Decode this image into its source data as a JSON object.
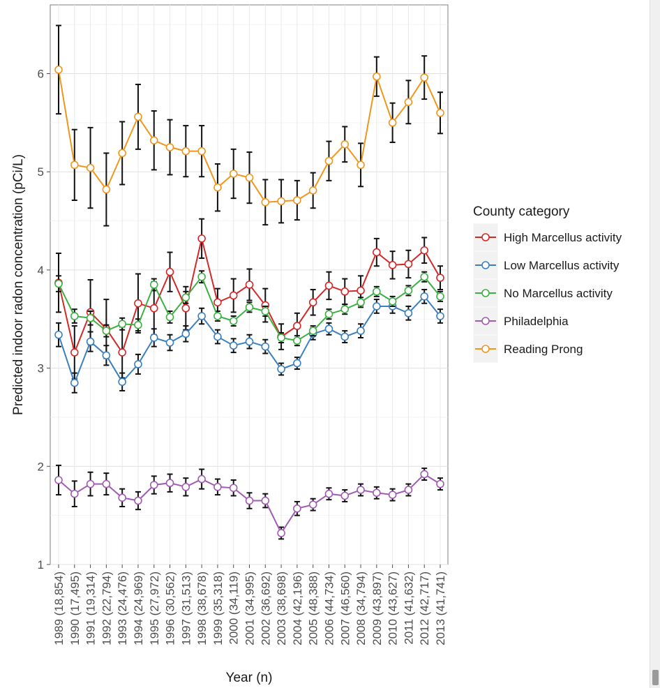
{
  "chart_data": {
    "type": "line",
    "xlabel": "Year (n)",
    "ylabel": "Predicted indoor radon concentration (pCi/L)",
    "ylim": [
      1,
      6.7
    ],
    "yticks": [
      1,
      2,
      3,
      4,
      5,
      6
    ],
    "categories": [
      "1989 (18,854)",
      "1990 (17,495)",
      "1991 (19,314)",
      "1992 (22,794)",
      "1993 (24,476)",
      "1994 (24,969)",
      "1995 (27,972)",
      "1996 (30,562)",
      "1997 (31,513)",
      "1998 (38,678)",
      "1999 (35,318)",
      "2000 (34,119)",
      "2001 (34,995)",
      "2002 (36,692)",
      "2003 (38,698)",
      "2004 (42,196)",
      "2005 (48,388)",
      "2006 (44,734)",
      "2007 (46,560)",
      "2008 (34,794)",
      "2009 (43,897)",
      "2010 (43,627)",
      "2011 (41,632)",
      "2012 (42,717)",
      "2013 (41,741)"
    ],
    "grid": true,
    "legend": {
      "title": "County category",
      "position": "right"
    },
    "series": [
      {
        "name": "High Marcellus activity",
        "color": "#d62728",
        "values": [
          3.87,
          3.16,
          3.57,
          3.4,
          3.16,
          3.66,
          3.61,
          3.98,
          3.61,
          4.32,
          3.67,
          3.74,
          3.85,
          3.64,
          3.32,
          3.43,
          3.67,
          3.84,
          3.78,
          3.79,
          4.18,
          4.05,
          4.06,
          4.2,
          3.92
        ],
        "errors": [
          0.3,
          0.27,
          0.33,
          0.3,
          0.26,
          0.3,
          0.27,
          0.2,
          0.22,
          0.2,
          0.14,
          0.17,
          0.16,
          0.17,
          0.13,
          0.13,
          0.13,
          0.14,
          0.13,
          0.15,
          0.14,
          0.14,
          0.14,
          0.13,
          0.12
        ]
      },
      {
        "name": "Low Marcellus activity",
        "color": "#3a7fc0",
        "values": [
          3.34,
          2.85,
          3.27,
          3.13,
          2.86,
          3.04,
          3.31,
          3.26,
          3.35,
          3.53,
          3.32,
          3.23,
          3.27,
          3.22,
          2.99,
          3.05,
          3.35,
          3.4,
          3.32,
          3.38,
          3.63,
          3.63,
          3.56,
          3.73,
          3.53
        ],
        "errors": [
          0.12,
          0.1,
          0.1,
          0.1,
          0.09,
          0.1,
          0.09,
          0.08,
          0.08,
          0.08,
          0.07,
          0.07,
          0.07,
          0.07,
          0.06,
          0.06,
          0.06,
          0.06,
          0.06,
          0.07,
          0.07,
          0.07,
          0.07,
          0.07,
          0.07
        ]
      },
      {
        "name": "No Marcellus activity",
        "color": "#3cb043",
        "values": [
          3.86,
          3.53,
          3.51,
          3.38,
          3.45,
          3.44,
          3.85,
          3.52,
          3.72,
          3.93,
          3.53,
          3.48,
          3.62,
          3.58,
          3.31,
          3.28,
          3.38,
          3.55,
          3.6,
          3.67,
          3.78,
          3.68,
          3.79,
          3.93,
          3.73
        ],
        "errors": [
          0.08,
          0.07,
          0.07,
          0.06,
          0.06,
          0.06,
          0.06,
          0.06,
          0.06,
          0.06,
          0.05,
          0.05,
          0.05,
          0.05,
          0.05,
          0.05,
          0.05,
          0.05,
          0.05,
          0.05,
          0.05,
          0.05,
          0.05,
          0.05,
          0.05
        ]
      },
      {
        "name": "Philadelphia",
        "color": "#a25bb3",
        "values": [
          1.86,
          1.72,
          1.82,
          1.82,
          1.68,
          1.65,
          1.81,
          1.83,
          1.79,
          1.87,
          1.79,
          1.78,
          1.65,
          1.65,
          1.32,
          1.57,
          1.61,
          1.72,
          1.7,
          1.76,
          1.73,
          1.71,
          1.76,
          1.92,
          1.82
        ],
        "errors": [
          0.15,
          0.13,
          0.12,
          0.11,
          0.09,
          0.09,
          0.09,
          0.09,
          0.09,
          0.1,
          0.08,
          0.08,
          0.08,
          0.07,
          0.06,
          0.07,
          0.06,
          0.06,
          0.06,
          0.06,
          0.06,
          0.06,
          0.06,
          0.06,
          0.06
        ]
      },
      {
        "name": "Reading Prong",
        "color": "#f0961c",
        "values": [
          6.04,
          5.07,
          5.04,
          4.82,
          5.19,
          5.56,
          5.32,
          5.25,
          5.21,
          5.21,
          4.84,
          4.98,
          4.94,
          4.69,
          4.7,
          4.71,
          4.81,
          5.11,
          5.28,
          5.07,
          5.97,
          5.5,
          5.71,
          5.96,
          5.6
        ],
        "errors": [
          0.45,
          0.36,
          0.41,
          0.37,
          0.32,
          0.33,
          0.3,
          0.28,
          0.26,
          0.26,
          0.24,
          0.25,
          0.26,
          0.23,
          0.22,
          0.2,
          0.18,
          0.2,
          0.18,
          0.22,
          0.2,
          0.2,
          0.22,
          0.22,
          0.21
        ]
      }
    ]
  }
}
